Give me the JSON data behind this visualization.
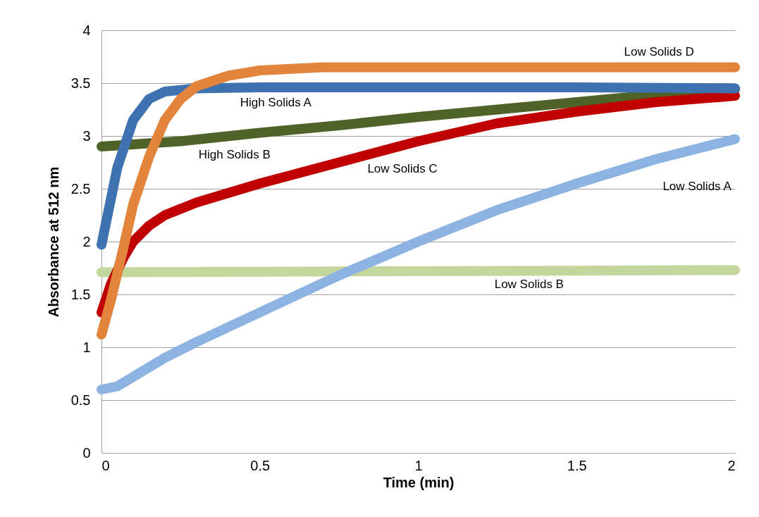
{
  "chart_data": {
    "type": "line",
    "xlabel": "Time (min)",
    "ylabel": "Absorbance at 512 nm",
    "xlim": [
      0,
      2
    ],
    "xticks": [
      0,
      0.5,
      1,
      1.5,
      2
    ],
    "ylim": [
      0,
      4
    ],
    "yticks": [
      0,
      0.5,
      1,
      1.5,
      2,
      2.5,
      3,
      3.5,
      4
    ],
    "grid": "y",
    "line_style": "solid",
    "series": [
      {
        "name": "Low Solids B",
        "color": "#c3d69b",
        "x": [
          0,
          1,
          2
        ],
        "values": [
          1.71,
          1.72,
          1.73
        ]
      },
      {
        "name": "Low Solids A",
        "color": "#8db3e2",
        "x": [
          0,
          0.05,
          0.1,
          0.2,
          0.3,
          0.5,
          0.75,
          1,
          1.25,
          1.5,
          1.75,
          2
        ],
        "values": [
          0.6,
          0.63,
          0.72,
          0.9,
          1.05,
          1.33,
          1.68,
          2.0,
          2.3,
          2.55,
          2.78,
          2.97
        ]
      },
      {
        "name": "High Solids B",
        "color": "#4f6228",
        "x": [
          0,
          0.25,
          0.5,
          0.75,
          1,
          1.25,
          1.5,
          1.75,
          2
        ],
        "values": [
          2.9,
          2.95,
          3.03,
          3.1,
          3.18,
          3.25,
          3.32,
          3.39,
          3.44
        ]
      },
      {
        "name": "Low Solids C",
        "color": "#c00000",
        "x": [
          0,
          0.03,
          0.07,
          0.1,
          0.15,
          0.2,
          0.3,
          0.5,
          0.75,
          1,
          1.25,
          1.5,
          1.75,
          2
        ],
        "values": [
          1.33,
          1.6,
          1.85,
          2.0,
          2.15,
          2.25,
          2.37,
          2.55,
          2.75,
          2.95,
          3.12,
          3.23,
          3.32,
          3.38
        ]
      },
      {
        "name": "High Solids A",
        "color": "#3f72b0",
        "x": [
          0,
          0.05,
          0.1,
          0.15,
          0.2,
          0.3,
          0.5,
          1,
          1.5,
          2
        ],
        "values": [
          1.97,
          2.7,
          3.15,
          3.35,
          3.42,
          3.45,
          3.46,
          3.46,
          3.46,
          3.45
        ]
      },
      {
        "name": "Low Solids D",
        "color": "#e3843c",
        "x": [
          0,
          0.03,
          0.07,
          0.1,
          0.15,
          0.2,
          0.25,
          0.3,
          0.4,
          0.5,
          0.7,
          1,
          1.5,
          2
        ],
        "values": [
          1.12,
          1.45,
          1.95,
          2.35,
          2.8,
          3.15,
          3.35,
          3.47,
          3.57,
          3.62,
          3.65,
          3.65,
          3.65,
          3.65
        ]
      }
    ]
  }
}
